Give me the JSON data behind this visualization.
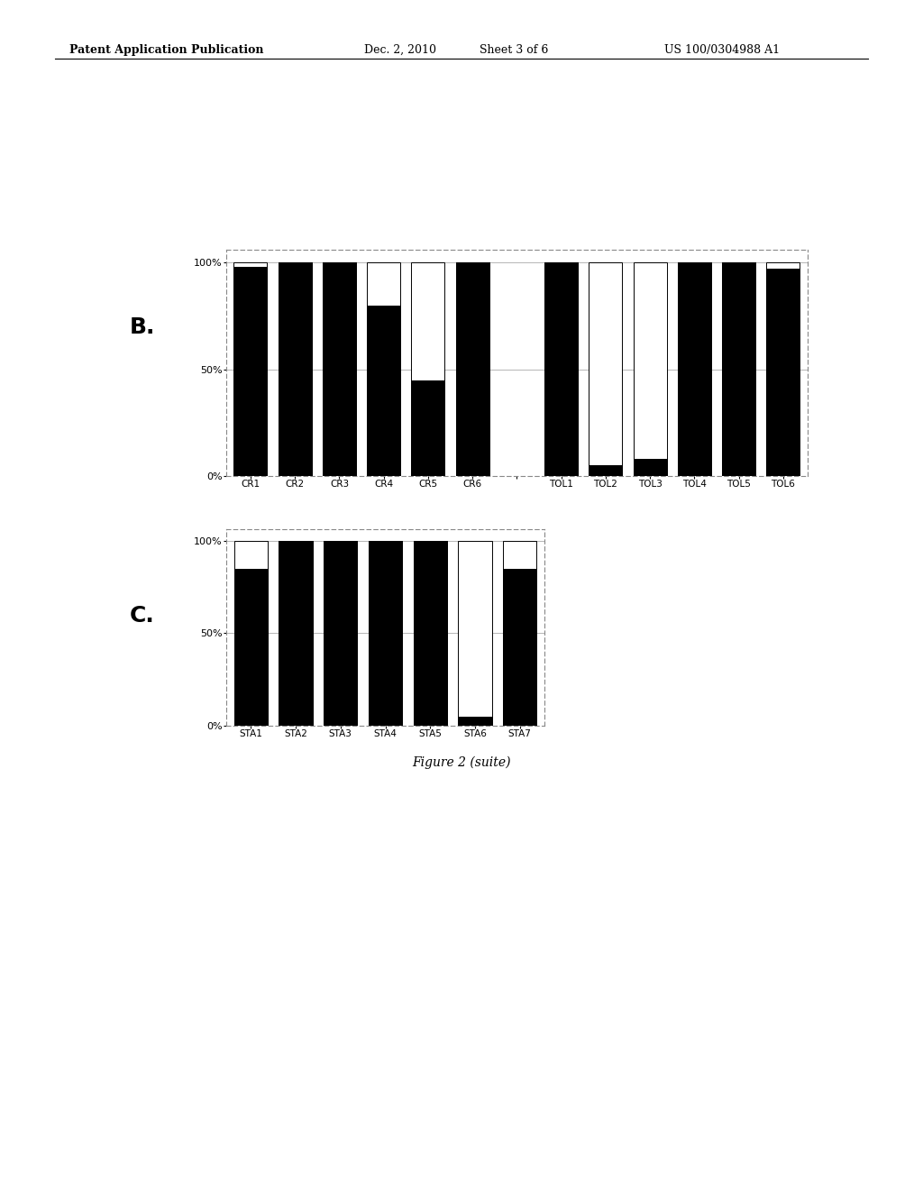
{
  "chart_B": {
    "categories": [
      "CR1",
      "CR2",
      "CR3",
      "CR4",
      "CR5",
      "CR6",
      "",
      "TOL1",
      "TOL2",
      "TOL3",
      "TOL4",
      "TOL5",
      "TOL6"
    ],
    "black_values": [
      98,
      100,
      100,
      80,
      45,
      100,
      0,
      100,
      5,
      8,
      100,
      100,
      97
    ],
    "ytick_labels": [
      "0%",
      "50%",
      "100%"
    ],
    "label": "B."
  },
  "chart_C": {
    "categories": [
      "STA1",
      "STA2",
      "STA3",
      "STA4",
      "STA5",
      "STA6",
      "STA7"
    ],
    "black_values": [
      85,
      100,
      100,
      100,
      100,
      5,
      85
    ],
    "ytick_labels": [
      "0%",
      "50%",
      "100%"
    ],
    "label": "C."
  },
  "header_left": "Patent Application Publication",
  "header_date": "Dec. 2, 2010",
  "header_sheet": "Sheet 3 of 6",
  "header_right": "US 100/0304988 A1",
  "figure_caption": "Figure 2 (suite)",
  "background_color": "#ffffff",
  "bar_color_black": "#000000",
  "bar_color_white": "#ffffff",
  "bar_edge_color": "#000000",
  "grid_color": "#aaaaaa",
  "spine_color": "#888888"
}
